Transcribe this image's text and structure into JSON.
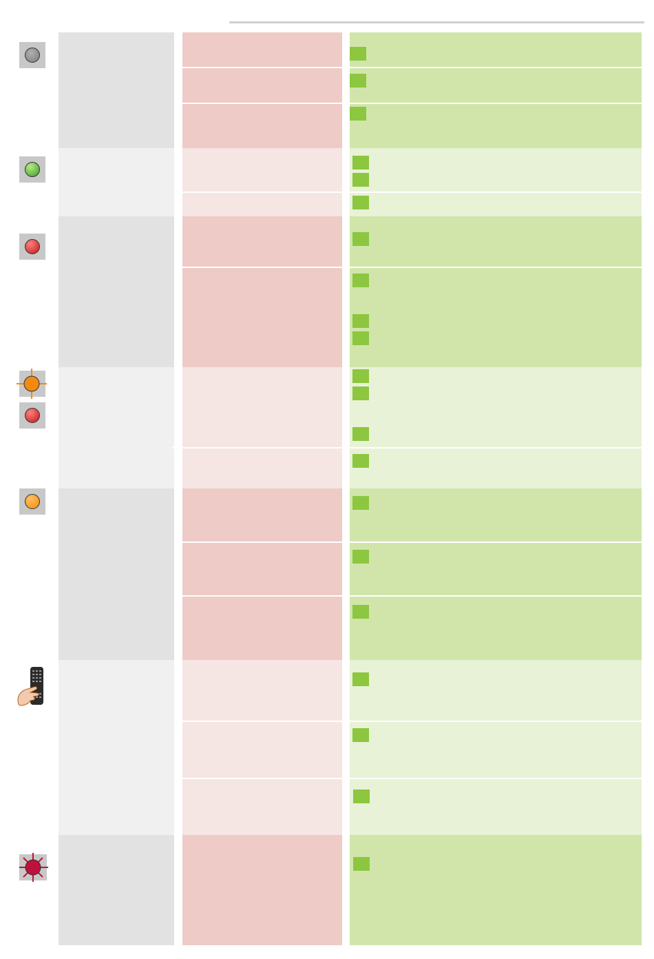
{
  "page": {
    "colors": {
      "state_dark": "#e2e2e2",
      "state_light": "#f0f0f0",
      "cause_dark": "#eecbc6",
      "cause_light": "#f5e5e3",
      "remedy_dark": "#d1e5ab",
      "remedy_light": "#e8f2d7",
      "check_marker": "#8dc63f"
    }
  },
  "indicators": [
    {
      "icon": "led-off-icon",
      "color": "#808080"
    },
    {
      "icon": "led-green-icon",
      "color": "#4caf35"
    },
    {
      "icon": "led-red-icon",
      "color": "#d02020"
    },
    {
      "icon": "led-orange-blinking-icon",
      "color": "#f28a12"
    },
    {
      "icon": "led-red-icon",
      "color": "#c01818"
    },
    {
      "icon": "led-orange-icon",
      "color": "#f28a12"
    },
    {
      "icon": "remote-control-hand-icon",
      "color": "#333333"
    },
    {
      "icon": "led-crimson-blinking-icon",
      "color": "#c0103c"
    }
  ]
}
